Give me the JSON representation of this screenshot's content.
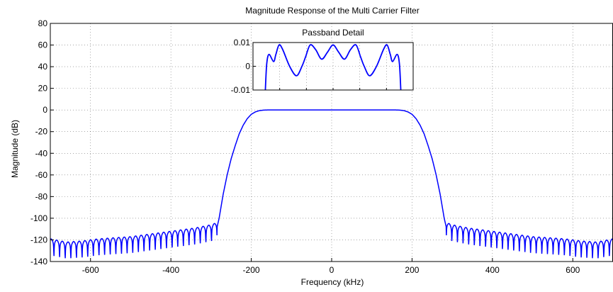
{
  "chart_data": [
    {
      "type": "line",
      "title": "Magnitude Response of the Multi Carrier Filter",
      "xlabel": "Frequency (kHz)",
      "ylabel": "Magnitude (dB)",
      "xlim": [
        -700,
        700
      ],
      "ylim": [
        -140,
        80
      ],
      "xticks": [
        -600,
        -400,
        -200,
        0,
        200,
        400,
        600
      ],
      "xtick_labels": [
        "-600",
        "-400",
        "-200",
        "0",
        "200",
        "400",
        "600"
      ],
      "yticks": [
        80,
        60,
        40,
        20,
        0,
        -20,
        -40,
        -60,
        -80,
        -100,
        -120,
        -140
      ],
      "ytick_labels": [
        "80",
        "60",
        "40",
        "20",
        "0",
        "-20",
        "-40",
        "-60",
        "-80",
        "-100",
        "-120",
        "-140"
      ],
      "grid": true,
      "line_color": "#0000ff",
      "series": [
        {
          "x": [
            -700,
            -660,
            -620,
            -580,
            -540,
            -500,
            -460,
            -420,
            -380,
            -340,
            -300,
            -285,
            -280,
            -270,
            -260,
            -250,
            -240,
            -230,
            -220,
            -210,
            -200,
            -190,
            -180,
            -170,
            -165,
            -160,
            -150,
            0,
            150,
            160,
            165,
            170,
            180,
            190,
            200,
            210,
            220,
            230,
            240,
            250,
            260,
            270,
            280,
            285,
            300,
            340,
            380,
            420,
            460,
            500,
            540,
            580,
            620,
            660,
            700
          ],
          "y": [
            -123,
            -126,
            -125,
            -123,
            -122,
            -121,
            -119,
            -117,
            -115,
            -113,
            -110,
            -108,
            -100,
            -78,
            -60,
            -45,
            -33,
            -22,
            -14,
            -8,
            -4,
            -1.8,
            -0.6,
            -0.15,
            -0.05,
            0,
            0,
            0,
            0,
            0,
            -0.05,
            -0.15,
            -0.6,
            -1.8,
            -4,
            -8,
            -14,
            -22,
            -33,
            -45,
            -60,
            -78,
            -100,
            -108,
            -110,
            -113,
            -115,
            -117,
            -119,
            -121,
            -122,
            -123,
            -125,
            -126,
            -123
          ]
        }
      ]
    },
    {
      "type": "line",
      "title": "Passband Detail",
      "ylim": [
        -0.01,
        0.01
      ],
      "yticks": [
        0.01,
        0,
        -0.01
      ],
      "ytick_labels": [
        "0.01",
        "0",
        "-0.01"
      ],
      "xlim": [
        -175,
        175
      ],
      "grid": true,
      "line_color": "#0000ff",
      "series": [
        {
          "x": [
            -148,
            -145,
            -140,
            -130,
            -125,
            -118,
            -110,
            -95,
            -80,
            -68,
            -60,
            -50,
            -38,
            -25,
            -12,
            0,
            12,
            25,
            38,
            50,
            60,
            68,
            80,
            95,
            110,
            118,
            125,
            130,
            140,
            145,
            148
          ],
          "y": [
            -0.012,
            0.001,
            0.005,
            0.002,
            0.005,
            0.009,
            0.007,
            0.0,
            -0.004,
            0.0,
            0.004,
            0.009,
            0.007,
            0.003,
            0.006,
            0.009,
            0.006,
            0.003,
            0.007,
            0.009,
            0.004,
            0.0,
            -0.004,
            0.0,
            0.007,
            0.009,
            0.005,
            0.002,
            0.005,
            0.001,
            -0.012
          ]
        }
      ]
    }
  ]
}
